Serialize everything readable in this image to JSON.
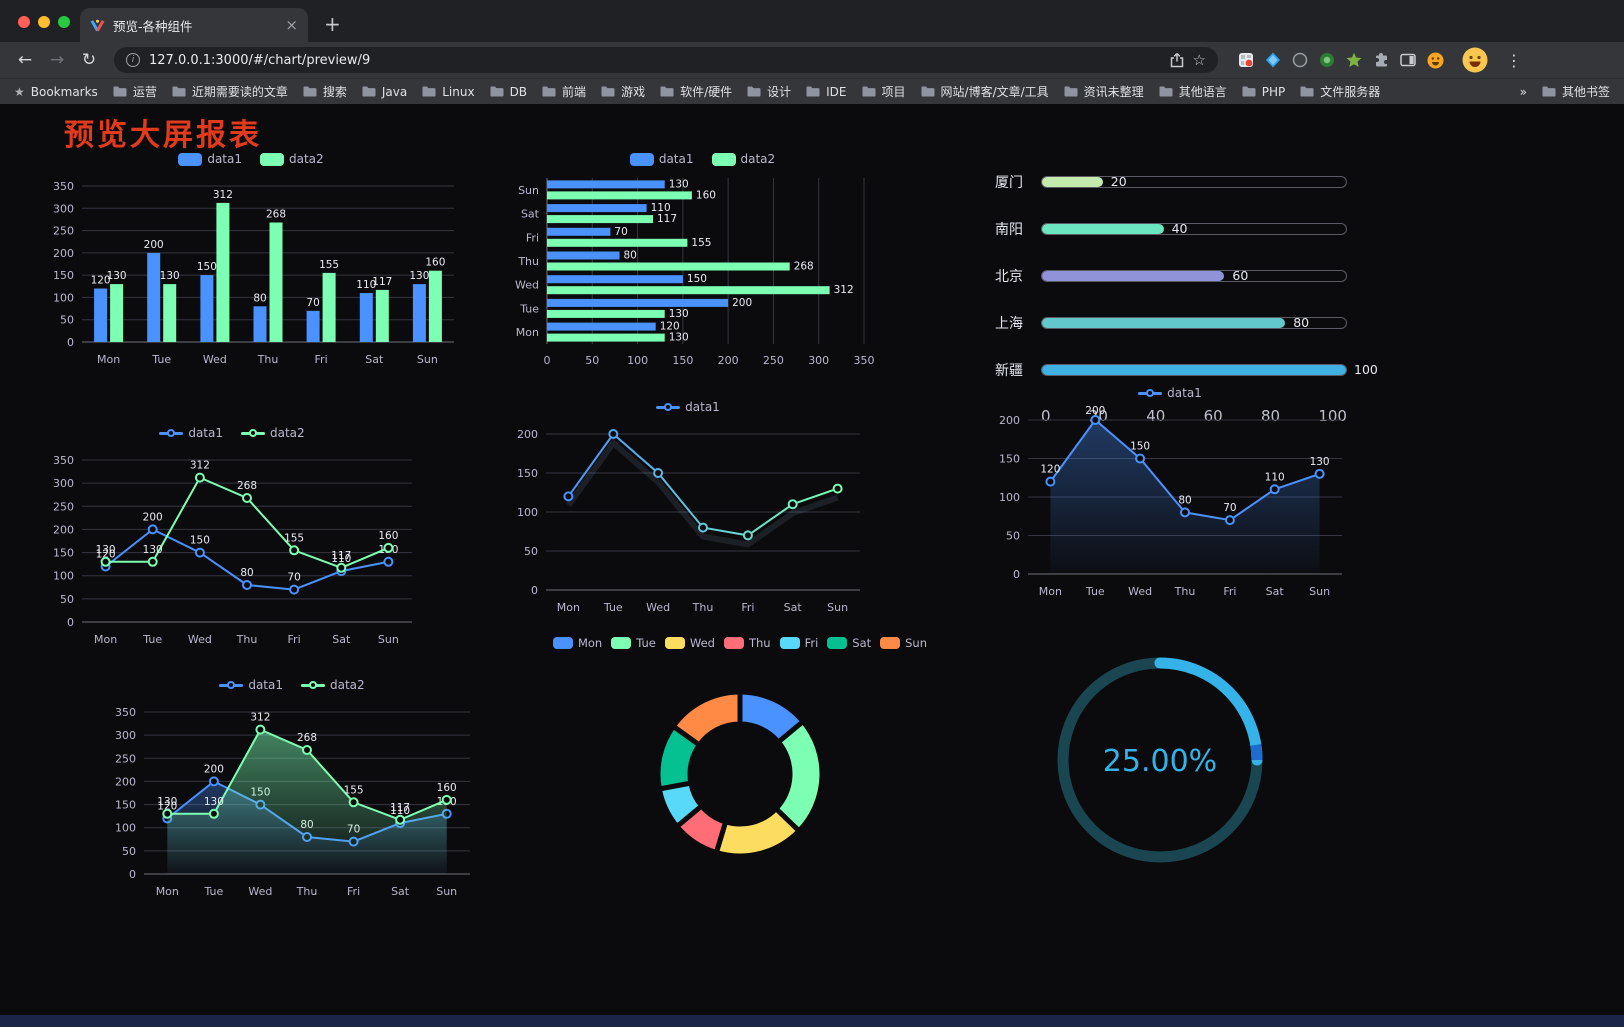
{
  "browser": {
    "tab_title": "预览-各种组件",
    "url": "127.0.0.1:3000/#/chart/preview/9",
    "icons": {
      "back": "←",
      "forward": "→",
      "reload": "↻",
      "tab_close": "×",
      "new_tab": "+",
      "menu": "⋮",
      "bookmarks_star": "★",
      "info": "i",
      "bookmark_star": "☆"
    },
    "bookmarks": [
      {
        "label": "Bookmarks",
        "icon": "star"
      },
      {
        "label": "运营",
        "icon": "folder"
      },
      {
        "label": "近期需要读的文章",
        "icon": "folder"
      },
      {
        "label": "搜索",
        "icon": "folder"
      },
      {
        "label": "Java",
        "icon": "folder"
      },
      {
        "label": "Linux",
        "icon": "folder"
      },
      {
        "label": "DB",
        "icon": "folder"
      },
      {
        "label": "前端",
        "icon": "folder"
      },
      {
        "label": "游戏",
        "icon": "folder"
      },
      {
        "label": "软件/硬件",
        "icon": "folder"
      },
      {
        "label": "设计",
        "icon": "folder"
      },
      {
        "label": "IDE",
        "icon": "folder"
      },
      {
        "label": "项目",
        "icon": "folder"
      },
      {
        "label": "网站/博客/文章/工具",
        "icon": "folder"
      },
      {
        "label": "资讯未整理",
        "icon": "folder"
      },
      {
        "label": "其他语言",
        "icon": "folder"
      },
      {
        "label": "PHP",
        "icon": "folder"
      },
      {
        "label": "文件服务器",
        "icon": "folder"
      },
      {
        "label": "»",
        "icon": "none",
        "align": "right"
      },
      {
        "label": "其他书签",
        "icon": "folder"
      }
    ],
    "extensions": [
      {
        "name": "screenshot-extension-icon",
        "glyph": "grid"
      },
      {
        "name": "kite-extension-icon",
        "glyph": "kite"
      },
      {
        "name": "ring-extension-icon",
        "glyph": "ring"
      },
      {
        "name": "green-circle-extension-icon",
        "glyph": "circle"
      },
      {
        "name": "green-star-extension-icon",
        "glyph": "star"
      },
      {
        "name": "extensions-puzzle-icon",
        "glyph": "puzzle"
      },
      {
        "name": "side-panel-icon",
        "glyph": "panel"
      },
      {
        "name": "emoji-extension-icon",
        "glyph": "face"
      }
    ]
  },
  "page": {
    "title": "预览大屏报表",
    "title_color": "#e23a1d"
  },
  "chart_data": [
    {
      "id": "bar-vertical",
      "type": "bar",
      "categories": [
        "Mon",
        "Tue",
        "Wed",
        "Thu",
        "Fri",
        "Sat",
        "Sun"
      ],
      "series": [
        {
          "name": "data1",
          "color": "#4992ff",
          "values": [
            120,
            200,
            150,
            80,
            70,
            110,
            130
          ]
        },
        {
          "name": "data2",
          "color": "#7cffb2",
          "values": [
            130,
            130,
            312,
            268,
            155,
            117,
            160
          ]
        }
      ],
      "ylim": [
        0,
        350
      ],
      "yticks": [
        0,
        50,
        100,
        150,
        200,
        250,
        300,
        350
      ],
      "legend_position": "top",
      "value_labels": true,
      "grid": true
    },
    {
      "id": "bar-horizontal",
      "type": "bar-horizontal",
      "categories": [
        "Mon",
        "Tue",
        "Wed",
        "Thu",
        "Fri",
        "Sat",
        "Sun"
      ],
      "series": [
        {
          "name": "data1",
          "color": "#4992ff",
          "values": [
            120,
            200,
            150,
            80,
            70,
            110,
            130
          ]
        },
        {
          "name": "data2",
          "color": "#7cffb2",
          "values": [
            130,
            130,
            312,
            268,
            155,
            117,
            160
          ]
        }
      ],
      "xlim": [
        0,
        350
      ],
      "xticks": [
        0,
        50,
        100,
        150,
        200,
        250,
        300,
        350
      ],
      "legend_position": "top",
      "value_labels": true,
      "grid": true
    },
    {
      "id": "city-progress",
      "type": "progress-bars",
      "max": 100,
      "items": [
        {
          "label": "厦门",
          "value": 20,
          "color": "#c4ebad"
        },
        {
          "label": "南阳",
          "value": 40,
          "color": "#6be6c1"
        },
        {
          "label": "北京",
          "value": 60,
          "color": "#9193d9"
        },
        {
          "label": "上海",
          "value": 80,
          "color": "#63c8cd"
        },
        {
          "label": "新疆",
          "value": 100,
          "color": "#3fb1e3"
        }
      ],
      "xticks": [
        0,
        20,
        40,
        60,
        80,
        100
      ]
    },
    {
      "id": "line-two-series",
      "type": "line",
      "categories": [
        "Mon",
        "Tue",
        "Wed",
        "Thu",
        "Fri",
        "Sat",
        "Sun"
      ],
      "series": [
        {
          "name": "data1",
          "color": "#4992ff",
          "values": [
            120,
            200,
            150,
            80,
            70,
            110,
            130
          ]
        },
        {
          "name": "data2",
          "color": "#7cffb2",
          "values": [
            130,
            130,
            312,
            268,
            155,
            117,
            160
          ]
        }
      ],
      "ylim": [
        0,
        350
      ],
      "yticks": [
        0,
        50,
        100,
        150,
        200,
        250,
        300,
        350
      ],
      "legend_position": "top",
      "value_labels": true,
      "grid": true
    },
    {
      "id": "line-gradient",
      "type": "line",
      "categories": [
        "Mon",
        "Tue",
        "Wed",
        "Thu",
        "Fri",
        "Sat",
        "Sun"
      ],
      "series": [
        {
          "name": "data1",
          "color": "#4992ff",
          "gradient": [
            "#4992ff",
            "#7cffb2"
          ],
          "values": [
            120,
            200,
            150,
            80,
            70,
            110,
            130
          ]
        }
      ],
      "ylim": [
        0,
        200
      ],
      "yticks": [
        0,
        50,
        100,
        150,
        200
      ],
      "legend_position": "top",
      "value_labels": false,
      "shadow": true,
      "grid": true
    },
    {
      "id": "line-area",
      "type": "line",
      "categories": [
        "Mon",
        "Tue",
        "Wed",
        "Thu",
        "Fri",
        "Sat",
        "Sun"
      ],
      "series": [
        {
          "name": "data1",
          "color": "#4992ff",
          "area": true,
          "values": [
            120,
            200,
            150,
            80,
            70,
            110,
            130
          ]
        }
      ],
      "ylim": [
        0,
        200
      ],
      "yticks": [
        0,
        50,
        100,
        150,
        200
      ],
      "legend_position": "top",
      "value_labels": true,
      "grid": true
    },
    {
      "id": "line-area-two",
      "type": "line",
      "categories": [
        "Mon",
        "Tue",
        "Wed",
        "Thu",
        "Fri",
        "Sat",
        "Sun"
      ],
      "series": [
        {
          "name": "data1",
          "color": "#4992ff",
          "area": true,
          "values": [
            120,
            200,
            150,
            80,
            70,
            110,
            130
          ]
        },
        {
          "name": "data2",
          "color": "#7cffb2",
          "area": true,
          "values": [
            130,
            130,
            312,
            268,
            155,
            117,
            160
          ]
        }
      ],
      "ylim": [
        0,
        350
      ],
      "yticks": [
        0,
        50,
        100,
        150,
        200,
        250,
        300,
        350
      ],
      "legend_position": "top",
      "value_labels": true,
      "grid": true
    },
    {
      "id": "weekday-donut",
      "type": "pie",
      "inner_radius": 0.61,
      "legend_position": "top",
      "slices": [
        {
          "name": "Mon",
          "value": 120,
          "color": "#4992ff"
        },
        {
          "name": "Tue",
          "value": 200,
          "color": "#7cffb2"
        },
        {
          "name": "Wed",
          "value": 150,
          "color": "#fddd60"
        },
        {
          "name": "Thu",
          "value": 80,
          "color": "#ff6e76"
        },
        {
          "name": "Fri",
          "value": 70,
          "color": "#58d9f9"
        },
        {
          "name": "Sat",
          "value": 110,
          "color": "#05c091"
        },
        {
          "name": "Sun",
          "value": 130,
          "color": "#ff8a45"
        }
      ]
    },
    {
      "id": "percent-ring",
      "type": "progress-ring",
      "value": 25,
      "label": "25.00%",
      "color": "#35b3e9",
      "end_tick_color": "#1b6ecf",
      "track_color": "#1a4652"
    }
  ]
}
